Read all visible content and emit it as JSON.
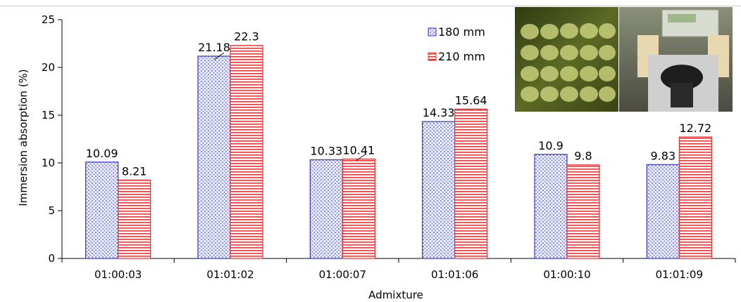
{
  "chart_data": {
    "type": "bar",
    "title": "",
    "xlabel": "Admixture",
    "ylabel": "Immersion absorption   (%)",
    "ylim": [
      0,
      25
    ],
    "yticks": [
      0,
      5,
      10,
      15,
      20,
      25
    ],
    "grid": false,
    "legend_position": "top-right",
    "categories": [
      "01:00:03",
      "01:01:02",
      "01:00:07",
      "01:01:06",
      "01:00:10",
      "01:01:09"
    ],
    "series": [
      {
        "name": "180 mm",
        "values": [
          10.09,
          21.18,
          10.33,
          14.33,
          10.9,
          9.83
        ],
        "color": "#3333cc"
      },
      {
        "name": "210 mm",
        "values": [
          8.21,
          22.3,
          10.41,
          15.64,
          9.8,
          12.72
        ],
        "color": "#e03030"
      }
    ],
    "data_labels": [
      [
        "10.09",
        "21.18",
        "10.33",
        "14.33",
        "10.9",
        "9.83"
      ],
      [
        "8.21",
        "22.3",
        "10.41",
        "15.64",
        "9.8",
        "12.72"
      ]
    ]
  }
}
